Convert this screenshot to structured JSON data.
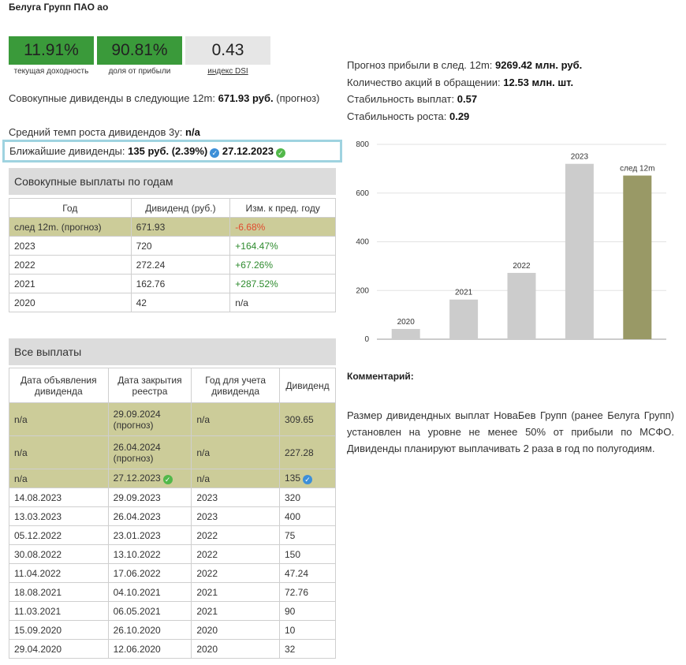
{
  "company": {
    "title": "Белуга Групп ПАО ао"
  },
  "metrics": [
    {
      "value": "11.91%",
      "caption": "текущая доходность"
    },
    {
      "value": "90.81%",
      "caption": "доля от прибыли"
    },
    {
      "value": "0.43",
      "caption": "индекс DSI"
    }
  ],
  "summary": {
    "cum_div_label": "Совокупные дивиденды в следующие 12m:",
    "cum_div_value": "671.93 руб.",
    "cum_div_note": "(прогноз)",
    "growth_label": "Средний темп роста дивидендов 3y:",
    "growth_value": "n/a",
    "nearest_label": "Ближайшие дивиденды:",
    "nearest_value": "135 руб.",
    "nearest_pct": "(2.39%)",
    "nearest_date": "27.12.2023"
  },
  "right_stats": {
    "profit_label": "Прогноз прибыли в след. 12m:",
    "profit_value": "9269.42 млн. руб.",
    "shares_label": "Количество акций в обращении:",
    "shares_value": "12.53 млн. шт.",
    "stab_pay_label": "Стабильность выплат:",
    "stab_pay_value": "0.57",
    "stab_growth_label": "Стабильность роста:",
    "stab_growth_value": "0.29"
  },
  "yearly": {
    "title": "Совокупные выплаты по годам",
    "headers": [
      "Год",
      "Дивиденд (руб.)",
      "Изм. к пред. году"
    ],
    "rows": [
      {
        "year": "след 12m. (прогноз)",
        "div": "671.93",
        "chg": "-6.68%"
      },
      {
        "year": "2023",
        "div": "720",
        "chg": "+164.47%"
      },
      {
        "year": "2022",
        "div": "272.24",
        "chg": "+67.26%"
      },
      {
        "year": "2021",
        "div": "162.76",
        "chg": "+287.52%"
      },
      {
        "year": "2020",
        "div": "42",
        "chg": "n/a"
      }
    ]
  },
  "all_payments": {
    "title": "Все выплаты",
    "headers": [
      "Дата объявления дивиденда",
      "Дата закрытия реестра",
      "Год для учета дивиденда",
      "Дивиденд"
    ],
    "rows": [
      {
        "announce": "n/a",
        "close": "29.09.2024",
        "close_note": "(прогноз)",
        "year": "n/a",
        "div": "309.65"
      },
      {
        "announce": "n/a",
        "close": "26.04.2024",
        "close_note": "(прогноз)",
        "year": "n/a",
        "div": "227.28"
      },
      {
        "announce": "n/a",
        "close": "27.12.2023",
        "close_note": "",
        "year": "n/a",
        "div": "135"
      },
      {
        "announce": "14.08.2023",
        "close": "29.09.2023",
        "close_note": "",
        "year": "2023",
        "div": "320"
      },
      {
        "announce": "13.03.2023",
        "close": "26.04.2023",
        "close_note": "",
        "year": "2023",
        "div": "400"
      },
      {
        "announce": "05.12.2022",
        "close": "23.01.2023",
        "close_note": "",
        "year": "2022",
        "div": "75"
      },
      {
        "announce": "30.08.2022",
        "close": "13.10.2022",
        "close_note": "",
        "year": "2022",
        "div": "150"
      },
      {
        "announce": "11.04.2022",
        "close": "17.06.2022",
        "close_note": "",
        "year": "2022",
        "div": "47.24"
      },
      {
        "announce": "18.08.2021",
        "close": "04.10.2021",
        "close_note": "",
        "year": "2021",
        "div": "72.76"
      },
      {
        "announce": "11.03.2021",
        "close": "06.05.2021",
        "close_note": "",
        "year": "2021",
        "div": "90"
      },
      {
        "announce": "15.09.2020",
        "close": "26.10.2020",
        "close_note": "",
        "year": "2020",
        "div": "10"
      },
      {
        "announce": "29.04.2020",
        "close": "12.06.2020",
        "close_note": "",
        "year": "2020",
        "div": "32"
      }
    ]
  },
  "comment": {
    "title": "Комментарий:",
    "text": "Размер дивидендных выплат НоваБев Групп (ранее Белуга Групп) установлен на уровне не менее 50% от прибыли по МСФО. Дивиденды планируют выплачивать 2 раза в год по полугодиям."
  },
  "colors": {
    "accent_green": "#3a9a3a",
    "highlight_row": "#cccc99",
    "bar_grey": "#cccccc",
    "bar_forecast": "#999966",
    "frame_blue": "#9fd3e0"
  },
  "chart_data": {
    "type": "bar",
    "categories": [
      "2020",
      "2021",
      "2022",
      "2023",
      "след 12m"
    ],
    "values": [
      42,
      162.76,
      272.24,
      720,
      671.93
    ],
    "ylim": [
      0,
      800
    ],
    "yticks": [
      0,
      200,
      400,
      600,
      800
    ],
    "grid": true,
    "title": "",
    "xlabel": "",
    "ylabel": ""
  }
}
